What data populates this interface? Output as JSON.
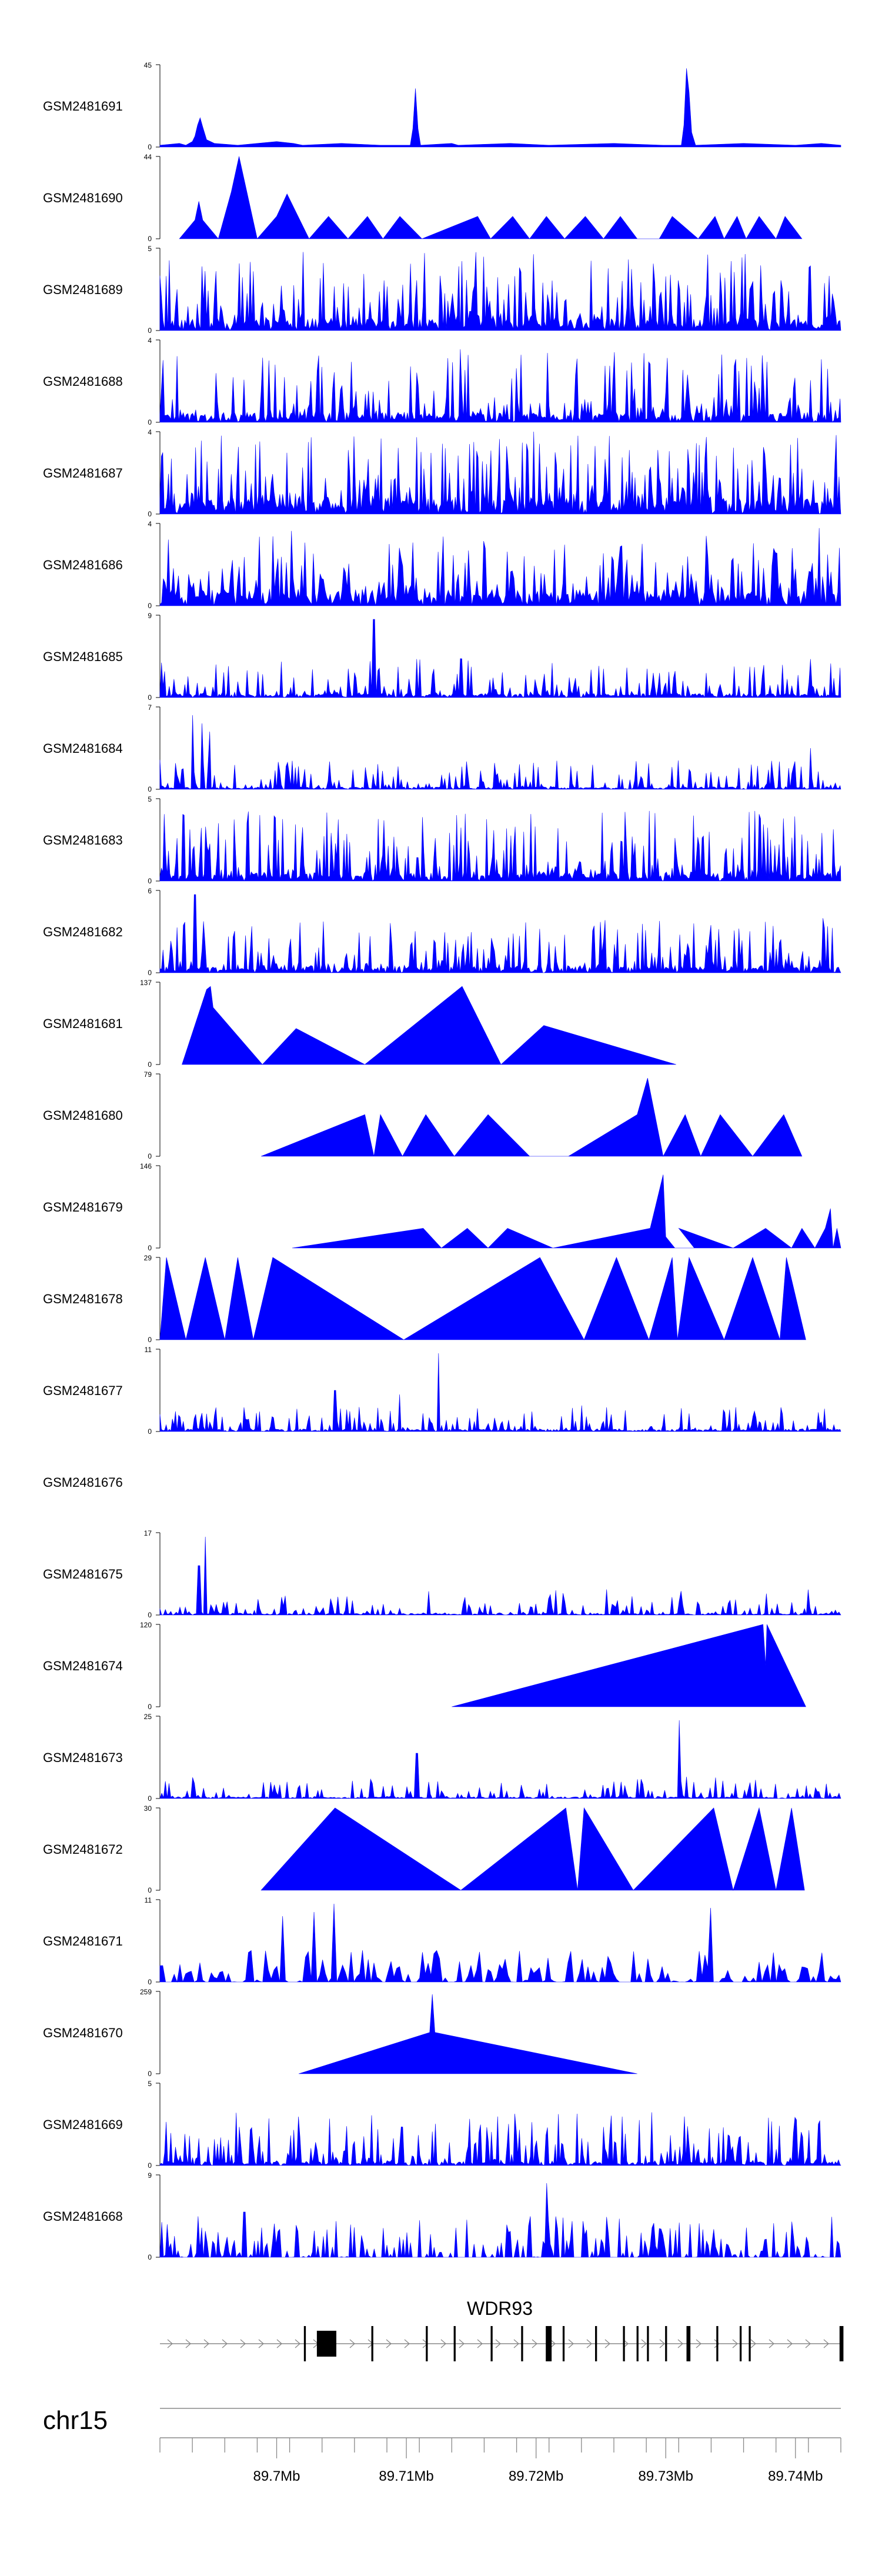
{
  "chart_data": {
    "type": "area",
    "title": "",
    "chromosome": "chr15",
    "color": "#0000ff",
    "x_unit": "Mb",
    "xlim": [
      89.691,
      89.7435
    ],
    "x_ticks": [
      89.7,
      89.71,
      89.72,
      89.73,
      89.74
    ],
    "x_tick_labels": [
      "89.7Mb",
      "89.71Mb",
      "89.72Mb",
      "89.73Mb",
      "89.74Mb"
    ],
    "gene": {
      "name": "WDR93",
      "strand": "+",
      "start": 89.691,
      "end": 89.7435,
      "exons": [
        [
          89.7021,
          89.70225
        ],
        [
          89.7031,
          89.7046
        ],
        [
          89.7073,
          89.70745
        ],
        [
          89.7115,
          89.71165
        ],
        [
          89.71365,
          89.7138
        ],
        [
          89.7165,
          89.71665
        ],
        [
          89.71885,
          89.719
        ],
        [
          89.72075,
          89.7212
        ],
        [
          89.72205,
          89.7222
        ],
        [
          89.72455,
          89.7247
        ],
        [
          89.7267,
          89.72685
        ],
        [
          89.72775,
          89.7279
        ],
        [
          89.72855,
          89.7287
        ],
        [
          89.72995,
          89.7301
        ],
        [
          89.7316,
          89.7319
        ],
        [
          89.7339,
          89.73405
        ],
        [
          89.7357,
          89.73585
        ],
        [
          89.7364,
          89.73655
        ],
        [
          89.7434,
          89.7437
        ]
      ]
    },
    "series": [
      {
        "name": "GSM2481691",
        "ymax": 45,
        "points": [
          [
            89.691,
            1
          ],
          [
            89.6925,
            2
          ],
          [
            89.693,
            1
          ],
          [
            89.6935,
            3
          ],
          [
            89.6937,
            6
          ],
          [
            89.6939,
            12
          ],
          [
            89.6941,
            16
          ],
          [
            89.6943,
            11
          ],
          [
            89.6946,
            4
          ],
          [
            89.6952,
            2
          ],
          [
            89.697,
            1
          ],
          [
            89.7,
            3
          ],
          [
            89.7013,
            2
          ],
          [
            89.702,
            1
          ],
          [
            89.705,
            2
          ],
          [
            89.708,
            1
          ],
          [
            89.7103,
            1
          ],
          [
            89.7105,
            10
          ],
          [
            89.7107,
            32
          ],
          [
            89.7109,
            10
          ],
          [
            89.7111,
            1
          ],
          [
            89.7135,
            2
          ],
          [
            89.714,
            1
          ],
          [
            89.718,
            2
          ],
          [
            89.721,
            1
          ],
          [
            89.726,
            2
          ],
          [
            89.7298,
            1
          ],
          [
            89.7312,
            1
          ],
          [
            89.7314,
            12
          ],
          [
            89.7316,
            43
          ],
          [
            89.7318,
            30
          ],
          [
            89.732,
            8
          ],
          [
            89.7323,
            1
          ],
          [
            89.736,
            2
          ],
          [
            89.74,
            1
          ],
          [
            89.742,
            2
          ],
          [
            89.7435,
            1
          ]
        ]
      },
      {
        "name": "GSM2481690",
        "ymax": 44,
        "points": [
          [
            89.6925,
            0
          ],
          [
            89.6937,
            10
          ],
          [
            89.694,
            20
          ],
          [
            89.6943,
            10
          ],
          [
            89.6955,
            0
          ],
          [
            89.6965,
            25
          ],
          [
            89.6971,
            44
          ],
          [
            89.6985,
            0
          ],
          [
            89.7,
            12
          ],
          [
            89.7008,
            24
          ],
          [
            89.7025,
            0
          ],
          [
            89.704,
            12
          ],
          [
            89.7055,
            0
          ],
          [
            89.707,
            12
          ],
          [
            89.7082,
            0
          ],
          [
            89.7095,
            12
          ],
          [
            89.7112,
            0
          ],
          [
            89.7155,
            12
          ],
          [
            89.7165,
            0
          ],
          [
            89.7182,
            12
          ],
          [
            89.7195,
            0
          ],
          [
            89.7208,
            12
          ],
          [
            89.7222,
            0
          ],
          [
            89.7238,
            12
          ],
          [
            89.7252,
            0
          ],
          [
            89.7265,
            12
          ],
          [
            89.7278,
            0
          ],
          [
            89.7295,
            0
          ],
          [
            89.7305,
            12
          ],
          [
            89.7325,
            0
          ],
          [
            89.7338,
            12
          ],
          [
            89.7345,
            0
          ],
          [
            89.7355,
            12
          ],
          [
            89.7362,
            0
          ],
          [
            89.7372,
            12
          ],
          [
            89.7385,
            0
          ],
          [
            89.7392,
            12
          ],
          [
            89.7405,
            0
          ]
        ]
      },
      {
        "name": "GSM2481689",
        "ymax": 5,
        "points": []
      },
      {
        "name": "GSM2481688",
        "ymax": 4,
        "points": []
      },
      {
        "name": "GSM2481687",
        "ymax": 4,
        "points": []
      },
      {
        "name": "GSM2481686",
        "ymax": 4,
        "points": []
      },
      {
        "name": "GSM2481685",
        "ymax": 9,
        "points": []
      },
      {
        "name": "GSM2481684",
        "ymax": 7,
        "points": []
      },
      {
        "name": "GSM2481683",
        "ymax": 5,
        "points": []
      },
      {
        "name": "GSM2481682",
        "ymax": 6,
        "points": []
      },
      {
        "name": "GSM2481681",
        "ymax": 137,
        "points": [
          [
            89.6927,
            0
          ],
          [
            89.6946,
            125
          ],
          [
            89.6949,
            130
          ],
          [
            89.6951,
            95
          ],
          [
            89.6989,
            0
          ],
          [
            89.7015,
            60
          ],
          [
            89.7068,
            0
          ],
          [
            89.7143,
            130
          ],
          [
            89.7173,
            0
          ],
          [
            89.7206,
            65
          ],
          [
            89.7308,
            0
          ]
        ]
      },
      {
        "name": "GSM2481680",
        "ymax": 79,
        "points": [
          [
            89.6988,
            0
          ],
          [
            89.7068,
            40
          ],
          [
            89.7075,
            0
          ],
          [
            89.708,
            40
          ],
          [
            89.7097,
            0
          ],
          [
            89.7115,
            40
          ],
          [
            89.7137,
            0
          ],
          [
            89.7163,
            40
          ],
          [
            89.7195,
            0
          ],
          [
            89.7225,
            0
          ],
          [
            89.7278,
            40
          ],
          [
            89.7286,
            75
          ],
          [
            89.7298,
            0
          ],
          [
            89.7315,
            40
          ],
          [
            89.7327,
            0
          ],
          [
            89.7342,
            40
          ],
          [
            89.7367,
            0
          ],
          [
            89.7391,
            40
          ],
          [
            89.7405,
            0
          ]
        ]
      },
      {
        "name": "GSM2481679",
        "ymax": 146,
        "points": [
          [
            89.7012,
            0
          ],
          [
            89.7113,
            35
          ],
          [
            89.7127,
            0
          ],
          [
            89.7147,
            35
          ],
          [
            89.7163,
            0
          ],
          [
            89.7178,
            35
          ],
          [
            89.7213,
            0
          ],
          [
            89.7288,
            35
          ],
          [
            89.7298,
            130
          ],
          [
            89.73,
            20
          ],
          [
            89.7307,
            0
          ],
          [
            89.7322,
            0
          ],
          [
            89.731,
            35
          ],
          [
            89.7352,
            0
          ],
          [
            89.7377,
            35
          ],
          [
            89.7397,
            0
          ],
          [
            89.7405,
            35
          ],
          [
            89.7415,
            0
          ],
          [
            89.7423,
            35
          ],
          [
            89.7427,
            70
          ],
          [
            89.7429,
            0
          ],
          [
            89.7432,
            35
          ],
          [
            89.7435,
            0
          ]
        ]
      },
      {
        "name": "GSM2481678",
        "ymax": 29,
        "points": [
          [
            89.691,
            0
          ],
          [
            89.6915,
            29
          ],
          [
            89.693,
            0
          ],
          [
            89.6945,
            29
          ],
          [
            89.696,
            0
          ],
          [
            89.697,
            29
          ],
          [
            89.6982,
            0
          ],
          [
            89.6997,
            29
          ],
          [
            89.7098,
            0
          ],
          [
            89.7203,
            29
          ],
          [
            89.7237,
            0
          ],
          [
            89.7262,
            29
          ],
          [
            89.7287,
            0
          ],
          [
            89.7305,
            29
          ],
          [
            89.7309,
            0
          ],
          [
            89.7318,
            29
          ],
          [
            89.7345,
            0
          ],
          [
            89.7367,
            29
          ],
          [
            89.7388,
            0
          ],
          [
            89.7393,
            29
          ],
          [
            89.7408,
            0
          ]
        ]
      },
      {
        "name": "GSM2481677",
        "ymax": 11,
        "points": []
      },
      {
        "name": "GSM2481676",
        "ymax": 0,
        "points": []
      },
      {
        "name": "GSM2481675",
        "ymax": 17,
        "points": []
      },
      {
        "name": "GSM2481674",
        "ymax": 120,
        "points": [
          [
            89.7135,
            0
          ],
          [
            89.7375,
            120
          ],
          [
            89.7377,
            60
          ],
          [
            89.7378,
            120
          ],
          [
            89.7408,
            0
          ]
        ]
      },
      {
        "name": "GSM2481673",
        "ymax": 25,
        "points": []
      },
      {
        "name": "GSM2481672",
        "ymax": 30,
        "points": [
          [
            89.6988,
            0
          ],
          [
            89.7045,
            30
          ],
          [
            89.7142,
            0
          ],
          [
            89.7223,
            30
          ],
          [
            89.7232,
            0
          ],
          [
            89.7237,
            30
          ],
          [
            89.7275,
            0
          ],
          [
            89.7337,
            30
          ],
          [
            89.7352,
            0
          ],
          [
            89.7372,
            30
          ],
          [
            89.7385,
            0
          ],
          [
            89.7397,
            30
          ],
          [
            89.7407,
            0
          ]
        ]
      },
      {
        "name": "GSM2481671",
        "ymax": 11,
        "points": []
      },
      {
        "name": "GSM2481670",
        "ymax": 259,
        "points": [
          [
            89.7017,
            0
          ],
          [
            89.7118,
            130
          ],
          [
            89.712,
            250
          ],
          [
            89.7122,
            130
          ],
          [
            89.7278,
            0
          ]
        ]
      },
      {
        "name": "GSM2481669",
        "ymax": 5,
        "points": []
      },
      {
        "name": "GSM2481668",
        "ymax": 9,
        "points": []
      }
    ]
  }
}
